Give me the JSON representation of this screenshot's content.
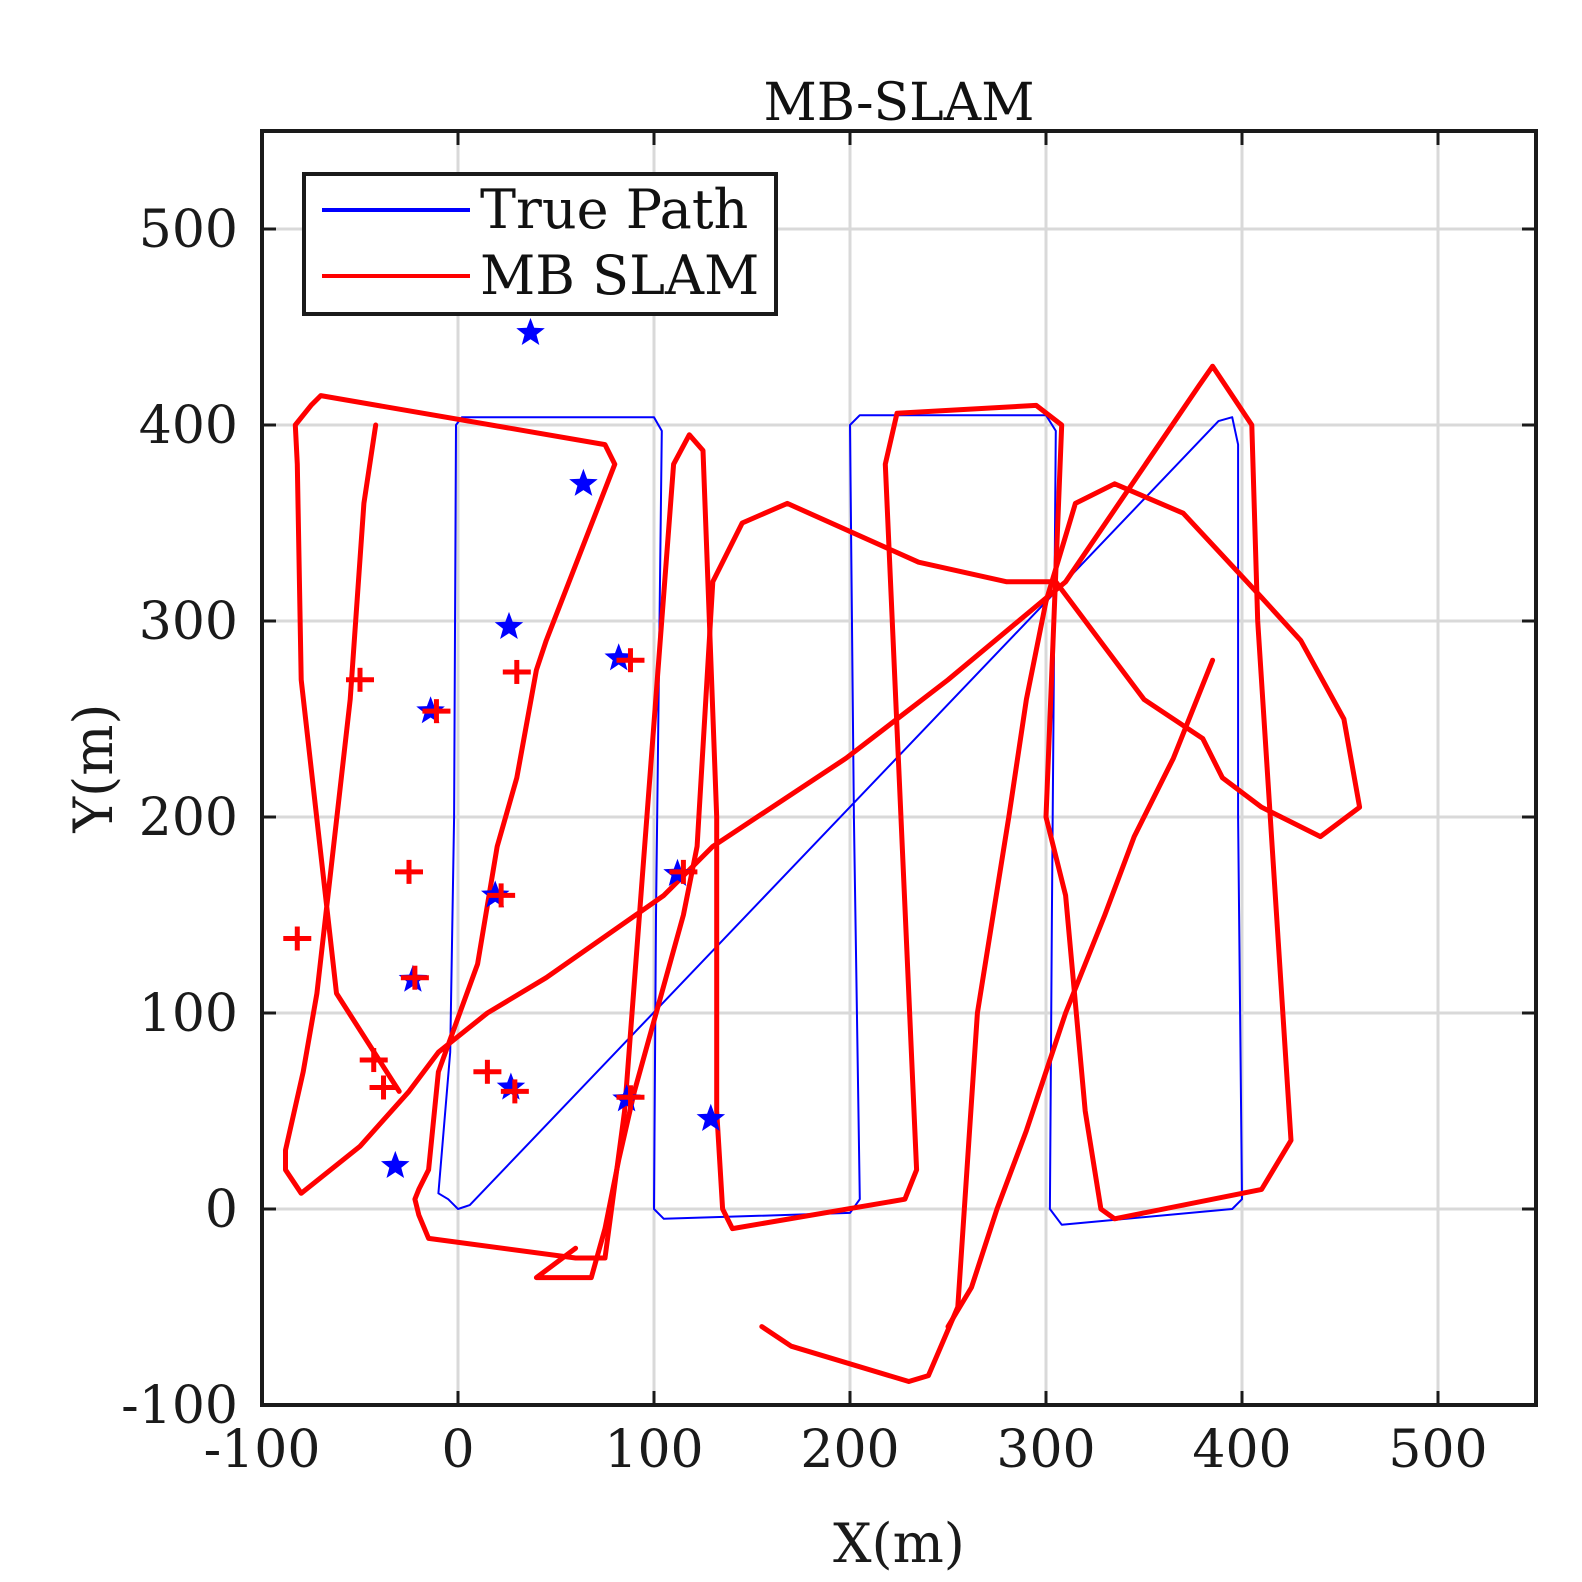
{
  "chart_data": {
    "type": "line",
    "title": "MB-SLAM",
    "xlabel": "X(m)",
    "ylabel": "Y(m)",
    "xlim": [
      -100,
      550
    ],
    "ylim": [
      -100,
      550
    ],
    "xticks": [
      -100,
      0,
      100,
      200,
      300,
      400,
      500
    ],
    "yticks": [
      -100,
      0,
      100,
      200,
      300,
      400,
      500
    ],
    "xtick_labels": [
      "-100",
      "0",
      "100",
      "200",
      "300",
      "400",
      "500"
    ],
    "ytick_labels": [
      "-100",
      "0",
      "100",
      "200",
      "300",
      "400",
      "500"
    ],
    "grid": true,
    "legend": "top-left",
    "series": [
      {
        "name": "True Path",
        "color": "#0000ff",
        "points": [
          [
            0,
            0
          ],
          [
            -2,
            2
          ],
          [
            -5,
            5
          ],
          [
            -10,
            8
          ],
          [
            -4,
            80
          ],
          [
            -2,
            200
          ],
          [
            -1,
            400
          ],
          [
            2,
            404
          ],
          [
            100,
            404
          ],
          [
            104,
            397
          ],
          [
            101,
            150
          ],
          [
            100,
            0
          ],
          [
            105,
            -5
          ],
          [
            200,
            -2
          ],
          [
            205,
            5
          ],
          [
            202,
            200
          ],
          [
            200,
            400
          ],
          [
            205,
            405
          ],
          [
            300,
            405
          ],
          [
            305,
            397
          ],
          [
            303,
            150
          ],
          [
            302,
            0
          ],
          [
            308,
            -8
          ],
          [
            395,
            0
          ],
          [
            400,
            5
          ],
          [
            398,
            200
          ],
          [
            398,
            390
          ],
          [
            395,
            404
          ],
          [
            388,
            402
          ],
          [
            6,
            2
          ],
          [
            0,
            0
          ]
        ]
      },
      {
        "name": "MB SLAM",
        "color": "#ff0000",
        "points": [
          [
            -30,
            60
          ],
          [
            -62,
            110
          ],
          [
            -80,
            270
          ],
          [
            -82,
            380
          ],
          [
            -83,
            400
          ],
          [
            -75,
            410
          ],
          [
            -70,
            415
          ],
          [
            75,
            390
          ],
          [
            80,
            380
          ],
          [
            45,
            290
          ],
          [
            40,
            275
          ],
          [
            30,
            220
          ],
          [
            20,
            185
          ],
          [
            10,
            125
          ],
          [
            -10,
            70
          ],
          [
            -15,
            20
          ],
          [
            -20,
            10
          ],
          [
            -22,
            5
          ],
          [
            -20,
            -3
          ],
          [
            -15,
            -15
          ],
          [
            60,
            -25
          ],
          [
            75,
            -25
          ],
          [
            85,
            50
          ],
          [
            110,
            380
          ],
          [
            118,
            395
          ],
          [
            125,
            387
          ],
          [
            132,
            200
          ],
          [
            132,
            50
          ],
          [
            135,
            0
          ],
          [
            140,
            -10
          ],
          [
            228,
            5
          ],
          [
            234,
            20
          ],
          [
            218,
            380
          ],
          [
            224,
            406
          ],
          [
            295,
            410
          ],
          [
            308,
            400
          ],
          [
            300,
            200
          ],
          [
            310,
            160
          ],
          [
            320,
            50
          ],
          [
            328,
            0
          ],
          [
            335,
            -5
          ],
          [
            410,
            10
          ],
          [
            425,
            35
          ],
          [
            408,
            300
          ],
          [
            405,
            400
          ],
          [
            385,
            430
          ],
          [
            378,
            420
          ],
          [
            310,
            320
          ],
          [
            250,
            270
          ],
          [
            198,
            230
          ],
          [
            130,
            185
          ],
          [
            105,
            160
          ],
          [
            45,
            118
          ],
          [
            15,
            100
          ],
          [
            -10,
            80
          ],
          [
            -25,
            60
          ],
          [
            -50,
            32
          ],
          [
            -80,
            8
          ],
          [
            -88,
            20
          ],
          [
            -88,
            30
          ],
          [
            -79,
            70
          ],
          [
            -72,
            110
          ],
          [
            -55,
            260
          ],
          [
            -48,
            360
          ],
          [
            -42,
            400
          ]
        ]
      },
      {
        "name": "MB SLAM",
        "color": "#ff0000",
        "points": [
          [
            155,
            -60
          ],
          [
            170,
            -70
          ],
          [
            230,
            -88
          ],
          [
            240,
            -85
          ],
          [
            255,
            -50
          ],
          [
            265,
            100
          ],
          [
            281,
            200
          ],
          [
            290,
            260
          ],
          [
            300,
            310
          ],
          [
            315,
            360
          ],
          [
            335,
            370
          ],
          [
            370,
            355
          ],
          [
            410,
            312
          ],
          [
            430,
            290
          ],
          [
            452,
            250
          ],
          [
            460,
            205
          ],
          [
            440,
            190
          ],
          [
            410,
            205
          ],
          [
            390,
            220
          ],
          [
            380,
            240
          ],
          [
            350,
            260
          ],
          [
            305,
            320
          ],
          [
            280,
            320
          ],
          [
            235,
            330
          ],
          [
            168,
            360
          ],
          [
            145,
            350
          ],
          [
            130,
            320
          ],
          [
            122,
            185
          ],
          [
            115,
            150
          ],
          [
            90,
            60
          ],
          [
            82,
            25
          ],
          [
            75,
            -10
          ],
          [
            68,
            -35
          ],
          [
            40,
            -35
          ],
          [
            60,
            -20
          ]
        ]
      },
      {
        "name": "MB SLAM",
        "color": "#ff0000",
        "points": [
          [
            250,
            -60
          ],
          [
            262,
            -40
          ],
          [
            275,
            0
          ],
          [
            290,
            40
          ],
          [
            310,
            100
          ],
          [
            330,
            150
          ],
          [
            345,
            190
          ],
          [
            365,
            230
          ],
          [
            385,
            280
          ]
        ]
      }
    ],
    "landmarks_true": [
      [
        37,
        447
      ],
      [
        64,
        370
      ],
      [
        26,
        297
      ],
      [
        82,
        281
      ],
      [
        -14,
        254
      ],
      [
        112,
        171
      ],
      [
        19,
        160
      ],
      [
        -23,
        117
      ],
      [
        27,
        62
      ],
      [
        86,
        56
      ],
      [
        129,
        46
      ],
      [
        -32,
        22
      ]
    ],
    "landmarks_estimated": [
      [
        -50,
        270
      ],
      [
        -11,
        254
      ],
      [
        30,
        274
      ],
      [
        88,
        280
      ],
      [
        -25,
        172
      ],
      [
        22,
        160
      ],
      [
        115,
        172
      ],
      [
        -82,
        138
      ],
      [
        -22,
        118
      ],
      [
        -43,
        76
      ],
      [
        15,
        70
      ],
      [
        -38,
        62
      ],
      [
        29,
        60
      ],
      [
        88,
        57
      ]
    ]
  }
}
